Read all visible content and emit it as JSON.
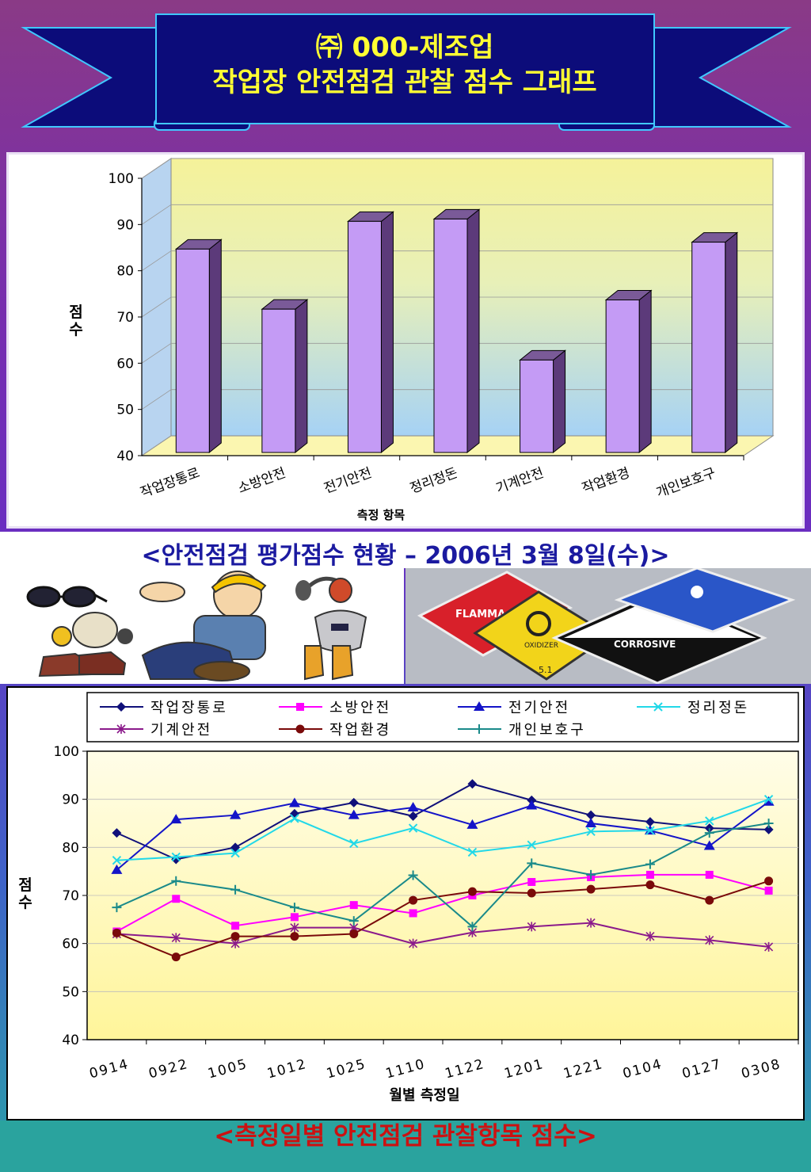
{
  "title": {
    "line1": "㈜ 000-제조업",
    "line2": "작업장 안전점검 관찰 점수 그래프"
  },
  "captions": {
    "bar_caption": "<안전점검 평가점수 현황 – 2006년 3월 8일(수)>",
    "line_caption": "<측정일별 안전점검 관찰항목 점수>"
  },
  "images": {
    "left": "safety-gear-illustration",
    "right": "hazard-signs-photo",
    "sign_labels": [
      "FLAMMA",
      "CORROSIVE",
      "5.1",
      "OXIDIZER"
    ]
  },
  "colors": {
    "bar": "#c49bf5",
    "bar_side": "#5c3a7a",
    "banner": "#0c0c7a",
    "title": "#ffff33"
  },
  "chart_data": [
    {
      "type": "bar",
      "title": "",
      "xlabel": "측정 항목",
      "ylabel": "점수",
      "ylim": [
        40,
        100
      ],
      "yticks": [
        40,
        50,
        60,
        70,
        80,
        90,
        100
      ],
      "categories": [
        "작업장통로",
        "소방안전",
        "전기안전",
        "정리정돈",
        "기계안전",
        "작업환경",
        "개인보호구"
      ],
      "values": [
        84,
        71,
        90,
        90.5,
        60,
        73,
        85.5
      ],
      "grid": true
    },
    {
      "type": "line",
      "title": "",
      "xlabel": "월별 측정일",
      "ylabel": "점수",
      "ylim": [
        40,
        100
      ],
      "yticks": [
        40,
        50,
        60,
        70,
        80,
        90,
        100
      ],
      "categories": [
        "0914",
        "0922",
        "1005",
        "1012",
        "1025",
        "1110",
        "1122",
        "1201",
        "1221",
        "0104",
        "0127",
        "0308"
      ],
      "legend": "top",
      "grid": true,
      "series": [
        {
          "name": "작업장통로",
          "color": "#10107a",
          "marker": "diamond",
          "values": [
            83,
            77.5,
            80,
            87,
            89.3,
            86.5,
            93.2,
            89.8,
            86.7,
            85.3,
            84,
            83.7
          ]
        },
        {
          "name": "소방안전",
          "color": "#ff00ff",
          "marker": "square",
          "values": [
            62.5,
            69.3,
            63.7,
            65.5,
            68,
            66.3,
            70,
            72.8,
            73.8,
            74.3,
            74.3,
            71
          ]
        },
        {
          "name": "전기안전",
          "color": "#1414c8",
          "marker": "triangle",
          "values": [
            75.3,
            85.8,
            86.7,
            89.2,
            86.7,
            88.3,
            84.7,
            88.7,
            85,
            83.5,
            80.3,
            89.5
          ]
        },
        {
          "name": "정리정돈",
          "color": "#22d8e8",
          "marker": "x",
          "values": [
            77.3,
            78,
            78.8,
            86,
            80.8,
            84,
            79,
            80.5,
            83.3,
            83.5,
            85.5,
            90
          ]
        },
        {
          "name": "기계안전",
          "color": "#8b1a8b",
          "marker": "star",
          "values": [
            62,
            61.2,
            60,
            63.3,
            63.3,
            60,
            62.3,
            63.5,
            64.3,
            61.5,
            60.7,
            59.3
          ]
        },
        {
          "name": "작업환경",
          "color": "#7a0a0a",
          "marker": "circle",
          "values": [
            62.2,
            57.2,
            61.5,
            61.5,
            62,
            69,
            70.8,
            70.5,
            71.3,
            72.2,
            69,
            73
          ]
        },
        {
          "name": "개인보호구",
          "color": "#1a8a8a",
          "marker": "plus",
          "values": [
            67.5,
            73,
            71.2,
            67.5,
            64.7,
            74.2,
            63.5,
            76.7,
            74.3,
            76.5,
            83,
            85
          ]
        }
      ]
    }
  ]
}
